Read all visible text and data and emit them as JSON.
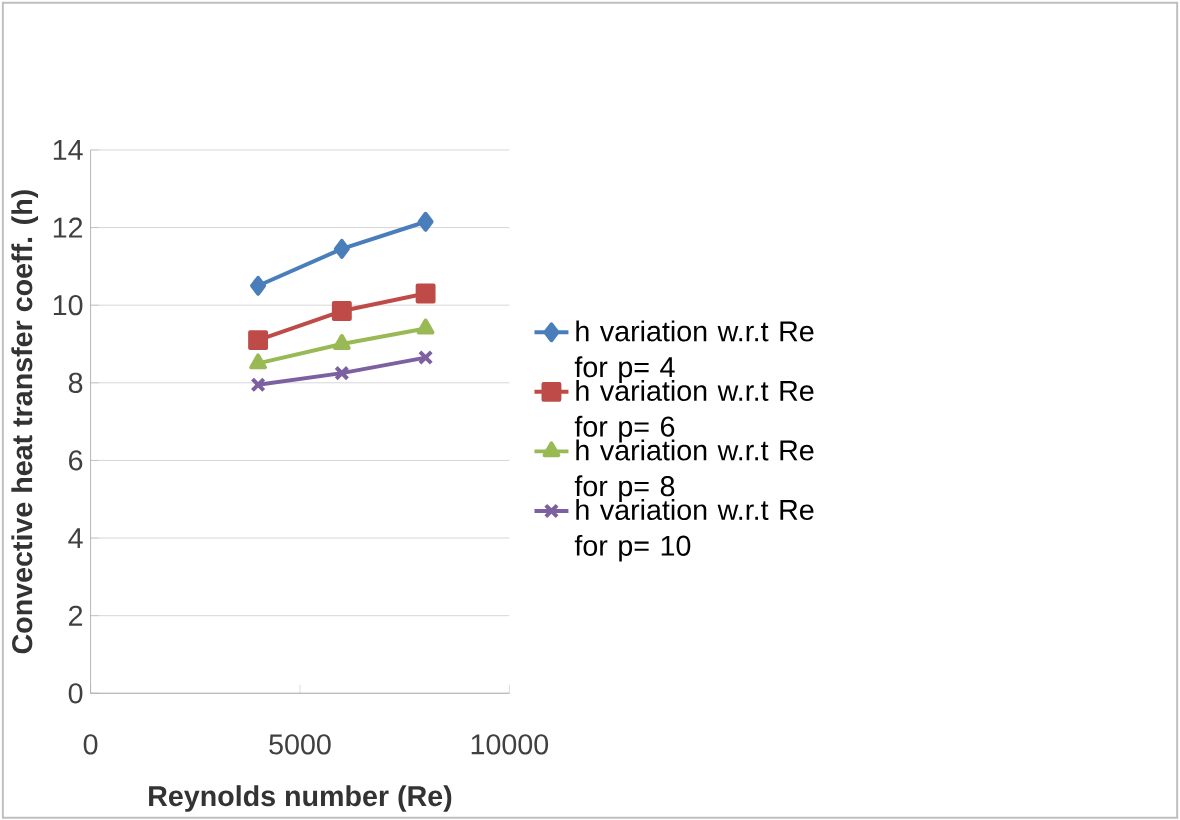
{
  "chart_data": {
    "type": "line",
    "xlabel": "Reynolds number (Re)",
    "ylabel": "Convective heat transfer coeff. (h)",
    "x": [
      4000,
      6000,
      8000
    ],
    "series": [
      {
        "name": "h variation w.r.t Re for p= 4",
        "color": "#4a7ebb",
        "marker": "diamond",
        "values": [
          10.5,
          11.45,
          12.15
        ]
      },
      {
        "name": "h variation w.r.t Re for p= 6",
        "color": "#be4b48",
        "marker": "square",
        "values": [
          9.1,
          9.85,
          10.3
        ]
      },
      {
        "name": "h variation w.r.t Re for p= 8",
        "color": "#98b954",
        "marker": "triangle",
        "values": [
          8.5,
          9.0,
          9.4
        ]
      },
      {
        "name": "h variation w.r.t Re for p= 10",
        "color": "#7d60a0",
        "marker": "cross",
        "values": [
          7.95,
          8.25,
          8.65
        ]
      }
    ],
    "xlim": [
      0,
      10000
    ],
    "xticks": [
      0,
      5000,
      10000
    ],
    "ylim": [
      0,
      14
    ],
    "yticks": [
      0,
      2,
      4,
      6,
      8,
      10,
      12,
      14
    ],
    "grid": "y",
    "legend": "right",
    "line_style": "solid"
  }
}
